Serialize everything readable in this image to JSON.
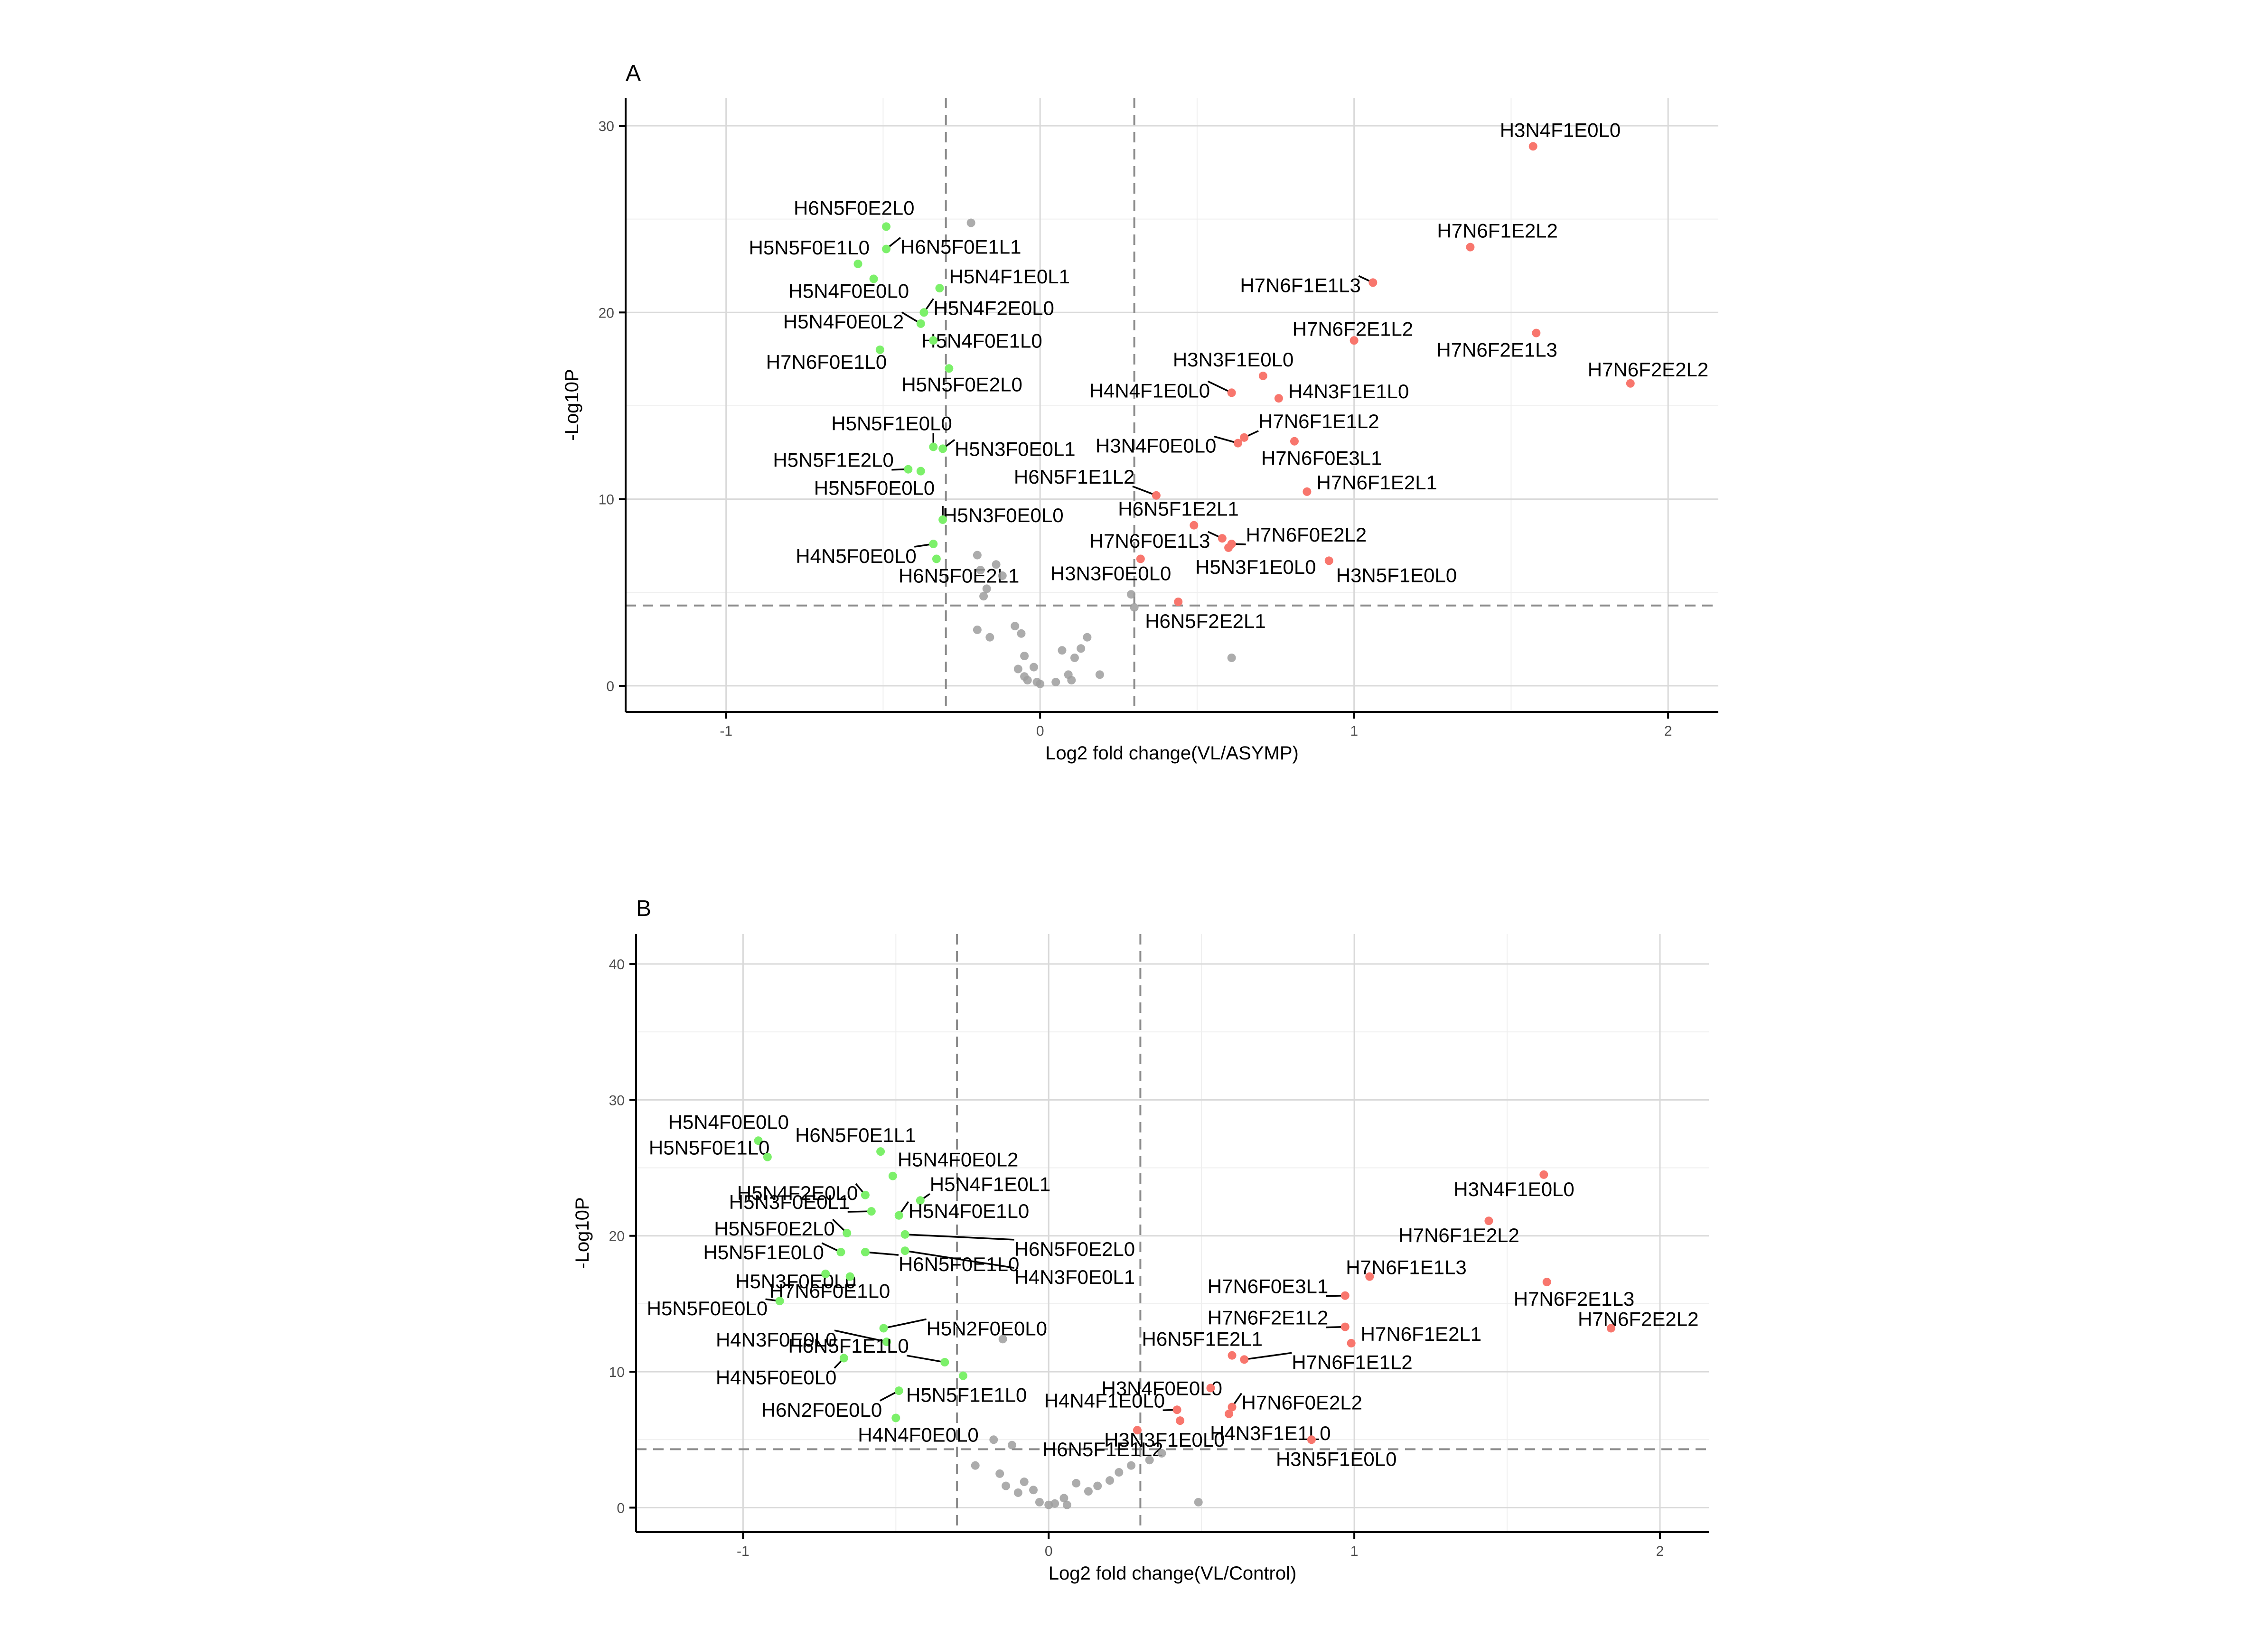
{
  "colors": {
    "up": "#f8766d",
    "down": "#7cf06a",
    "ns": "#9e9e9e"
  },
  "chart_data": [
    {
      "type": "scatter",
      "panel": "A",
      "xlabel": "Log2 fold change(VL/ASYMP)",
      "ylabel": "-Log10P",
      "xlim": [
        -1.32,
        2.16
      ],
      "ylim": [
        -1.4,
        31.5
      ],
      "xticks": [
        -1,
        0,
        1,
        2
      ],
      "yticks": [
        0,
        10,
        20,
        30
      ],
      "vlines": [
        -0.3,
        0.3
      ],
      "hline": 4.3,
      "grid": true,
      "legend": "none",
      "points": [
        {
          "x": 1.57,
          "y": 28.9,
          "group": "up",
          "label": "H3N4F1E0L0"
        },
        {
          "x": 1.37,
          "y": 23.5,
          "group": "up",
          "label": "H7N6F1E2L2"
        },
        {
          "x": 1.06,
          "y": 21.6,
          "group": "up",
          "label": "H7N6F1E1L3"
        },
        {
          "x": 1.0,
          "y": 18.5,
          "group": "up",
          "label": "H7N6F2E1L2"
        },
        {
          "x": 1.58,
          "y": 18.9,
          "group": "up",
          "label": "H7N6F2E1L3"
        },
        {
          "x": 1.88,
          "y": 16.2,
          "group": "up",
          "label": "H7N6F2E2L2"
        },
        {
          "x": 0.71,
          "y": 16.6,
          "group": "up",
          "label": "H3N3F1E0L0"
        },
        {
          "x": 0.61,
          "y": 15.7,
          "group": "up",
          "label": "H4N4F1E0L0"
        },
        {
          "x": 0.76,
          "y": 15.4,
          "group": "up",
          "label": "H4N3F1E1L0"
        },
        {
          "x": 0.65,
          "y": 13.3,
          "group": "up",
          "label": "H7N6F1E1L2"
        },
        {
          "x": 0.63,
          "y": 13.0,
          "group": "up",
          "label": "H3N4F0E0L0"
        },
        {
          "x": 0.81,
          "y": 13.1,
          "group": "up",
          "label": "H7N6F0E3L1"
        },
        {
          "x": 0.85,
          "y": 10.4,
          "group": "up",
          "label": "H7N6F1E2L1"
        },
        {
          "x": 0.37,
          "y": 10.2,
          "group": "up",
          "label": "H6N5F1E1L2"
        },
        {
          "x": 0.49,
          "y": 8.6,
          "group": "up",
          "label": "H6N5F1E2L1"
        },
        {
          "x": 0.58,
          "y": 7.9,
          "group": "up",
          "label": "H7N6F0E1L3"
        },
        {
          "x": 0.61,
          "y": 7.6,
          "group": "up",
          "label": "H7N6F0E2L2"
        },
        {
          "x": 0.6,
          "y": 7.4,
          "group": "up",
          "label": "H5N3F1E0L0"
        },
        {
          "x": 0.92,
          "y": 6.7,
          "group": "up",
          "label": "H3N5F1E0L0"
        },
        {
          "x": 0.32,
          "y": 6.8,
          "group": "up",
          "label": "H3N3F0E0L0"
        },
        {
          "x": 0.44,
          "y": 4.5,
          "group": "up",
          "label": "H6N5F2E2L1"
        },
        {
          "x": -0.49,
          "y": 24.6,
          "group": "down",
          "label": "H6N5F0E2L0"
        },
        {
          "x": -0.58,
          "y": 22.6,
          "group": "down",
          "label": "H5N5F0E1L0"
        },
        {
          "x": -0.49,
          "y": 23.4,
          "group": "down",
          "label": "H6N5F0E1L1"
        },
        {
          "x": -0.53,
          "y": 21.8,
          "group": "down",
          "label": "H5N4F0E0L0"
        },
        {
          "x": -0.32,
          "y": 21.3,
          "group": "down",
          "label": "H5N4F1E0L1"
        },
        {
          "x": -0.37,
          "y": 20.0,
          "group": "down",
          "label": "H5N4F2E0L0"
        },
        {
          "x": -0.38,
          "y": 19.4,
          "group": "down",
          "label": "H5N4F0E0L2"
        },
        {
          "x": -0.51,
          "y": 18.0,
          "group": "down",
          "label": "H7N6F0E1L0"
        },
        {
          "x": -0.34,
          "y": 18.5,
          "group": "down",
          "label": "H5N4F0E1L0"
        },
        {
          "x": -0.29,
          "y": 17.0,
          "group": "down",
          "label": "H5N5F0E2L0"
        },
        {
          "x": -0.34,
          "y": 12.8,
          "group": "down",
          "label": "H5N5F1E0L0"
        },
        {
          "x": -0.42,
          "y": 11.6,
          "group": "down",
          "label": "H5N5F1E2L0"
        },
        {
          "x": -0.31,
          "y": 12.7,
          "group": "down",
          "label": "H5N3F0E0L1"
        },
        {
          "x": -0.38,
          "y": 11.5,
          "group": "down",
          "label": "H5N5F0E0L0"
        },
        {
          "x": -0.31,
          "y": 8.9,
          "group": "down",
          "label": "H5N3F0E0L0"
        },
        {
          "x": -0.34,
          "y": 7.6,
          "group": "down",
          "label": "H4N5F0E0L0"
        },
        {
          "x": -0.33,
          "y": 6.8,
          "group": "down",
          "label": "H6N5F0E2L1"
        },
        {
          "x": -0.22,
          "y": 24.8,
          "group": "ns"
        },
        {
          "x": -0.2,
          "y": 7.0,
          "group": "ns"
        },
        {
          "x": -0.19,
          "y": 6.2,
          "group": "ns"
        },
        {
          "x": -0.17,
          "y": 5.2,
          "group": "ns"
        },
        {
          "x": -0.18,
          "y": 4.8,
          "group": "ns"
        },
        {
          "x": -0.14,
          "y": 6.5,
          "group": "ns"
        },
        {
          "x": -0.12,
          "y": 5.9,
          "group": "ns"
        },
        {
          "x": -0.2,
          "y": 3.0,
          "group": "ns"
        },
        {
          "x": -0.16,
          "y": 2.6,
          "group": "ns"
        },
        {
          "x": -0.08,
          "y": 3.2,
          "group": "ns"
        },
        {
          "x": -0.06,
          "y": 2.8,
          "group": "ns"
        },
        {
          "x": -0.05,
          "y": 1.6,
          "group": "ns"
        },
        {
          "x": -0.07,
          "y": 0.9,
          "group": "ns"
        },
        {
          "x": -0.05,
          "y": 0.5,
          "group": "ns"
        },
        {
          "x": -0.04,
          "y": 0.3,
          "group": "ns"
        },
        {
          "x": -0.02,
          "y": 1.0,
          "group": "ns"
        },
        {
          "x": -0.01,
          "y": 0.2,
          "group": "ns"
        },
        {
          "x": 0.0,
          "y": 0.1,
          "group": "ns"
        },
        {
          "x": 0.05,
          "y": 0.2,
          "group": "ns"
        },
        {
          "x": 0.07,
          "y": 1.9,
          "group": "ns"
        },
        {
          "x": 0.09,
          "y": 0.6,
          "group": "ns"
        },
        {
          "x": 0.1,
          "y": 0.3,
          "group": "ns"
        },
        {
          "x": 0.11,
          "y": 1.5,
          "group": "ns"
        },
        {
          "x": 0.13,
          "y": 2.0,
          "group": "ns"
        },
        {
          "x": 0.15,
          "y": 2.6,
          "group": "ns"
        },
        {
          "x": 0.19,
          "y": 0.6,
          "group": "ns"
        },
        {
          "x": 0.29,
          "y": 4.9,
          "group": "ns"
        },
        {
          "x": 0.3,
          "y": 4.2,
          "group": "ns"
        },
        {
          "x": 0.61,
          "y": 1.5,
          "group": "ns"
        }
      ]
    },
    {
      "type": "scatter",
      "panel": "B",
      "xlabel": "Log2 fold change(VL/Control)",
      "ylabel": "-Log10P",
      "xlim": [
        -1.35,
        2.16
      ],
      "ylim": [
        -1.8,
        42.2
      ],
      "xticks": [
        -1,
        0,
        1,
        2
      ],
      "yticks": [
        0,
        10,
        20,
        30,
        40
      ],
      "vlines": [
        -0.3,
        0.3
      ],
      "hline": 4.3,
      "grid": true,
      "legend": "none",
      "points": [
        {
          "x": 1.62,
          "y": 24.5,
          "group": "up",
          "label": "H3N4F1E0L0"
        },
        {
          "x": 1.44,
          "y": 21.1,
          "group": "up",
          "label": "H7N6F1E2L2"
        },
        {
          "x": 1.05,
          "y": 17.0,
          "group": "up",
          "label": "H7N6F1E1L3"
        },
        {
          "x": 0.97,
          "y": 15.6,
          "group": "up",
          "label": "H7N6F0E3L1"
        },
        {
          "x": 0.97,
          "y": 13.3,
          "group": "up",
          "label": "H7N6F2E1L2"
        },
        {
          "x": 1.63,
          "y": 16.6,
          "group": "up",
          "label": "H7N6F2E1L3"
        },
        {
          "x": 1.84,
          "y": 13.2,
          "group": "up",
          "label": "H7N6F2E2L2"
        },
        {
          "x": 0.99,
          "y": 12.1,
          "group": "up",
          "label": "H7N6F1E2L1"
        },
        {
          "x": 0.64,
          "y": 10.9,
          "group": "up",
          "label": "H7N6F1E1L2"
        },
        {
          "x": 0.6,
          "y": 11.2,
          "group": "up",
          "label": "H6N5F1E2L1"
        },
        {
          "x": 0.53,
          "y": 8.8,
          "group": "up",
          "label": "H3N4F0E0L0"
        },
        {
          "x": 0.6,
          "y": 7.4,
          "group": "up",
          "label": "H7N6F0E2L2"
        },
        {
          "x": 0.42,
          "y": 7.2,
          "group": "up",
          "label": "H4N4F1E0L0"
        },
        {
          "x": 0.59,
          "y": 6.9,
          "group": "up",
          "label": "H4N3F1E1L0"
        },
        {
          "x": 0.43,
          "y": 6.4,
          "group": "up",
          "label": "H3N3F1E0L0"
        },
        {
          "x": 0.86,
          "y": 5.0,
          "group": "up",
          "label": "H3N5F1E0L0"
        },
        {
          "x": 0.29,
          "y": 5.7,
          "group": "up",
          "label": "H6N5F1E1L2"
        },
        {
          "x": -0.95,
          "y": 27.0,
          "group": "down",
          "label": "H5N4F0E0L0"
        },
        {
          "x": -0.55,
          "y": 26.2,
          "group": "down",
          "label": "H6N5F0E1L1"
        },
        {
          "x": -0.92,
          "y": 25.8,
          "group": "down",
          "label": "H5N5F0E1L0"
        },
        {
          "x": -0.51,
          "y": 24.4,
          "group": "down",
          "label": "H5N4F0E0L2"
        },
        {
          "x": -0.6,
          "y": 23.0,
          "group": "down",
          "label": "H5N4F2E0L0"
        },
        {
          "x": -0.42,
          "y": 22.6,
          "group": "down",
          "label": "H5N4F1E0L1"
        },
        {
          "x": -0.58,
          "y": 21.8,
          "group": "down",
          "label": "H5N3F0E0L1"
        },
        {
          "x": -0.49,
          "y": 21.5,
          "group": "down",
          "label": "H5N4F0E1L0"
        },
        {
          "x": -0.66,
          "y": 20.2,
          "group": "down",
          "label": "H5N5F0E2L0"
        },
        {
          "x": -0.47,
          "y": 20.1,
          "group": "down",
          "label": "H6N5F0E2L0"
        },
        {
          "x": -0.68,
          "y": 18.8,
          "group": "down",
          "label": "H5N5F1E0L0"
        },
        {
          "x": -0.6,
          "y": 18.8,
          "group": "down",
          "label": "H6N5F0E1L0"
        },
        {
          "x": -0.47,
          "y": 18.9,
          "group": "down",
          "label": "H4N3F0E0L1"
        },
        {
          "x": -0.73,
          "y": 17.2,
          "group": "down",
          "label": "H5N3F0E0L0"
        },
        {
          "x": -0.65,
          "y": 17.0,
          "group": "down",
          "label": "H7N6F0E1L0"
        },
        {
          "x": -0.88,
          "y": 15.2,
          "group": "down",
          "label": "H5N5F0E0L0"
        },
        {
          "x": -0.54,
          "y": 13.2,
          "group": "down",
          "label": "H5N2F0E0L0"
        },
        {
          "x": -0.53,
          "y": 12.2,
          "group": "down",
          "label": "H4N3F0E0L0"
        },
        {
          "x": -0.34,
          "y": 10.7,
          "group": "down",
          "label": "H6N5F1E1L0"
        },
        {
          "x": -0.67,
          "y": 11.0,
          "group": "down",
          "label": "H4N5F0E0L0"
        },
        {
          "x": -0.49,
          "y": 8.6,
          "group": "down",
          "label": "H6N2F0E0L0"
        },
        {
          "x": -0.28,
          "y": 9.7,
          "group": "down",
          "label": "H5N5F1E1L0"
        },
        {
          "x": -0.5,
          "y": 6.6,
          "group": "down",
          "label": "H4N4F0E0L0"
        },
        {
          "x": -0.15,
          "y": 12.4,
          "group": "ns"
        },
        {
          "x": -0.18,
          "y": 5.0,
          "group": "ns"
        },
        {
          "x": -0.12,
          "y": 4.6,
          "group": "ns"
        },
        {
          "x": -0.24,
          "y": 3.1,
          "group": "ns"
        },
        {
          "x": -0.16,
          "y": 2.5,
          "group": "ns"
        },
        {
          "x": -0.14,
          "y": 1.6,
          "group": "ns"
        },
        {
          "x": -0.1,
          "y": 1.1,
          "group": "ns"
        },
        {
          "x": -0.08,
          "y": 1.9,
          "group": "ns"
        },
        {
          "x": -0.05,
          "y": 1.3,
          "group": "ns"
        },
        {
          "x": -0.03,
          "y": 0.4,
          "group": "ns"
        },
        {
          "x": 0.0,
          "y": 0.2,
          "group": "ns"
        },
        {
          "x": 0.02,
          "y": 0.3,
          "group": "ns"
        },
        {
          "x": 0.05,
          "y": 0.7,
          "group": "ns"
        },
        {
          "x": 0.06,
          "y": 0.2,
          "group": "ns"
        },
        {
          "x": 0.09,
          "y": 1.8,
          "group": "ns"
        },
        {
          "x": 0.13,
          "y": 1.2,
          "group": "ns"
        },
        {
          "x": 0.16,
          "y": 1.6,
          "group": "ns"
        },
        {
          "x": 0.2,
          "y": 2.0,
          "group": "ns"
        },
        {
          "x": 0.23,
          "y": 2.6,
          "group": "ns"
        },
        {
          "x": 0.27,
          "y": 3.1,
          "group": "ns"
        },
        {
          "x": 0.33,
          "y": 3.5,
          "group": "ns"
        },
        {
          "x": 0.37,
          "y": 4.0,
          "group": "ns"
        },
        {
          "x": 0.49,
          "y": 0.4,
          "group": "ns"
        }
      ]
    }
  ]
}
